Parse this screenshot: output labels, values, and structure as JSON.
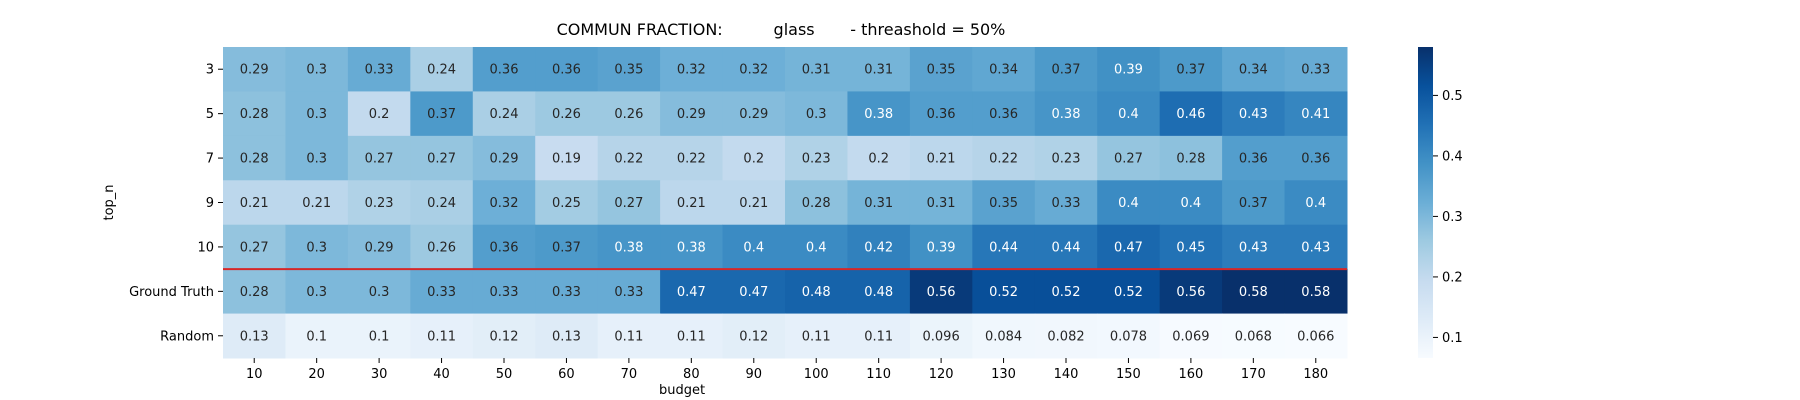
{
  "chart_data": {
    "type": "heatmap",
    "title": "COMMUN FRACTION:          glass       - threashold = 50%",
    "xlabel": "budget",
    "ylabel": "top_n",
    "x_categories": [
      "10",
      "20",
      "30",
      "40",
      "50",
      "60",
      "70",
      "80",
      "90",
      "100",
      "110",
      "120",
      "130",
      "140",
      "150",
      "160",
      "170",
      "180"
    ],
    "y_categories": [
      "3",
      "5",
      "7",
      "9",
      "10",
      "Ground Truth",
      "Random"
    ],
    "values": [
      [
        0.29,
        0.3,
        0.33,
        0.24,
        0.36,
        0.36,
        0.35,
        0.32,
        0.32,
        0.31,
        0.31,
        0.35,
        0.34,
        0.37,
        0.39,
        0.37,
        0.34,
        0.33
      ],
      [
        0.28,
        0.3,
        0.2,
        0.37,
        0.24,
        0.26,
        0.26,
        0.29,
        0.29,
        0.3,
        0.38,
        0.36,
        0.36,
        0.38,
        0.4,
        0.46,
        0.43,
        0.41
      ],
      [
        0.28,
        0.3,
        0.27,
        0.27,
        0.29,
        0.19,
        0.22,
        0.22,
        0.2,
        0.23,
        0.2,
        0.21,
        0.22,
        0.23,
        0.27,
        0.28,
        0.36,
        0.36
      ],
      [
        0.21,
        0.21,
        0.23,
        0.24,
        0.32,
        0.25,
        0.27,
        0.21,
        0.21,
        0.28,
        0.31,
        0.31,
        0.35,
        0.33,
        0.4,
        0.4,
        0.37,
        0.4
      ],
      [
        0.27,
        0.3,
        0.29,
        0.26,
        0.36,
        0.37,
        0.38,
        0.38,
        0.4,
        0.4,
        0.42,
        0.39,
        0.44,
        0.44,
        0.47,
        0.45,
        0.43,
        0.43
      ],
      [
        0.28,
        0.3,
        0.3,
        0.33,
        0.33,
        0.33,
        0.33,
        0.47,
        0.47,
        0.48,
        0.48,
        0.56,
        0.52,
        0.52,
        0.52,
        0.56,
        0.58,
        0.58
      ],
      [
        0.13,
        0.1,
        0.1,
        0.11,
        0.12,
        0.13,
        0.11,
        0.11,
        0.12,
        0.11,
        0.11,
        0.096,
        0.084,
        0.082,
        0.078,
        0.069,
        0.068,
        0.066
      ]
    ],
    "colormap": "Blues",
    "vmin": 0.066,
    "vmax": 0.58,
    "colorbar_ticks": [
      0.1,
      0.2,
      0.3,
      0.4,
      0.5
    ],
    "separator_after_row": "10",
    "separator_color": "#d62728"
  }
}
